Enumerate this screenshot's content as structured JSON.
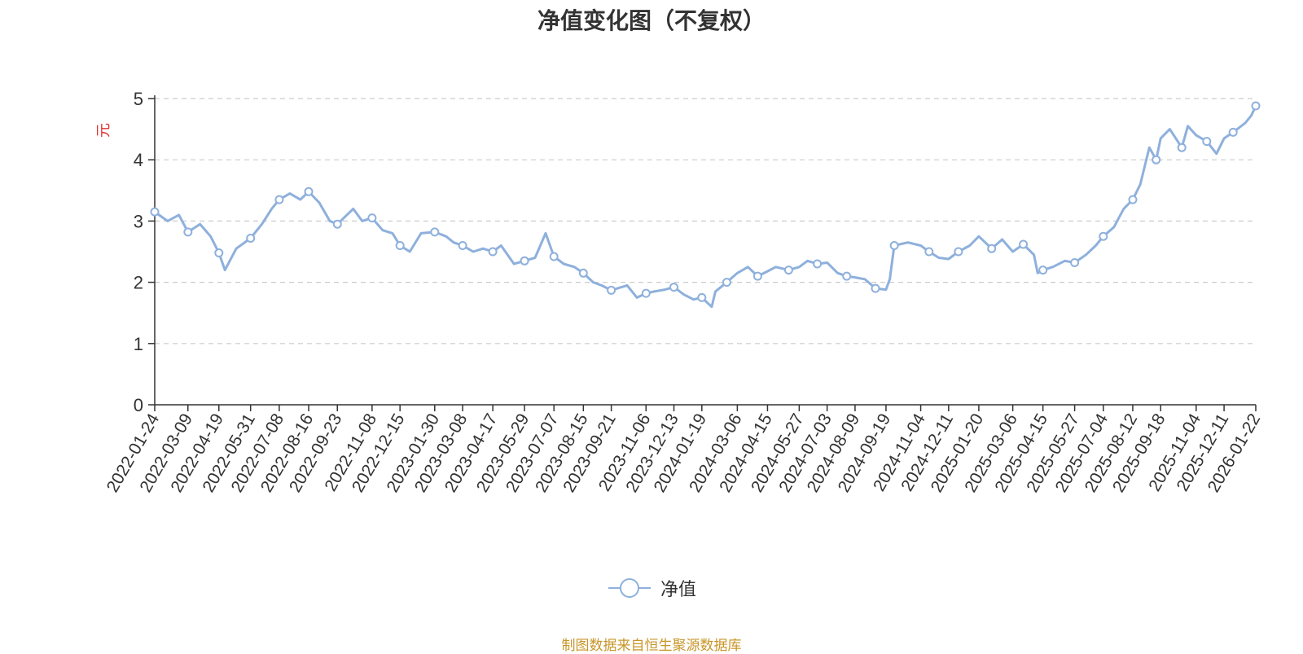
{
  "chart_data": {
    "type": "line",
    "title": "净值变化图（不复权）",
    "ylabel": "元",
    "ylim": [
      0,
      5
    ],
    "yticks": [
      0,
      1,
      2,
      3,
      4,
      5
    ],
    "grid": true,
    "legend_position": "bottom",
    "x_tick_labels": [
      "2022-01-24",
      "2022-03-09",
      "2022-04-19",
      "2022-05-31",
      "2022-07-08",
      "2022-08-16",
      "2022-09-23",
      "2022-11-08",
      "2022-12-15",
      "2023-01-30",
      "2023-03-08",
      "2023-04-17",
      "2023-05-29",
      "2023-07-07",
      "2023-08-15",
      "2023-09-21",
      "2023-11-06",
      "2023-12-13",
      "2024-01-19",
      "2024-03-06",
      "2024-04-15",
      "2024-05-27",
      "2024-07-03",
      "2024-08-09",
      "2024-09-19",
      "2024-11-04",
      "2024-12-11",
      "2025-01-20",
      "2025-03-06",
      "2025-04-15",
      "2025-05-27",
      "2025-07-04",
      "2025-08-12",
      "2025-09-18",
      "2025-11-04",
      "2025-12-11",
      "2026-01-22"
    ],
    "series": [
      {
        "name": "净值",
        "color": "#8eb0dc",
        "x": [
          "2022-01-24",
          "2022-02-10",
          "2022-02-25",
          "2022-03-09",
          "2022-03-25",
          "2022-04-08",
          "2022-04-19",
          "2022-04-27",
          "2022-05-12",
          "2022-05-31",
          "2022-06-15",
          "2022-06-28",
          "2022-07-08",
          "2022-07-22",
          "2022-08-05",
          "2022-08-16",
          "2022-08-30",
          "2022-09-13",
          "2022-09-23",
          "2022-10-14",
          "2022-10-26",
          "2022-11-08",
          "2022-11-22",
          "2022-12-05",
          "2022-12-15",
          "2022-12-28",
          "2023-01-12",
          "2023-01-30",
          "2023-02-14",
          "2023-02-24",
          "2023-03-08",
          "2023-03-22",
          "2023-04-04",
          "2023-04-17",
          "2023-04-28",
          "2023-05-15",
          "2023-05-29",
          "2023-06-12",
          "2023-06-26",
          "2023-07-07",
          "2023-07-20",
          "2023-08-03",
          "2023-08-15",
          "2023-08-28",
          "2023-09-08",
          "2023-09-21",
          "2023-10-12",
          "2023-10-25",
          "2023-11-06",
          "2023-11-17",
          "2023-12-01",
          "2023-12-13",
          "2023-12-26",
          "2024-01-08",
          "2024-01-19",
          "2024-02-01",
          "2024-02-06",
          "2024-02-21",
          "2024-03-06",
          "2024-03-20",
          "2024-04-02",
          "2024-04-15",
          "2024-04-26",
          "2024-05-13",
          "2024-05-27",
          "2024-06-07",
          "2024-06-20",
          "2024-07-03",
          "2024-07-17",
          "2024-07-29",
          "2024-08-09",
          "2024-08-22",
          "2024-09-05",
          "2024-09-19",
          "2024-09-24",
          "2024-09-30",
          "2024-10-18",
          "2024-11-04",
          "2024-11-15",
          "2024-11-28",
          "2024-12-11",
          "2024-12-24",
          "2025-01-08",
          "2025-01-20",
          "2025-02-06",
          "2025-02-20",
          "2025-03-06",
          "2025-03-20",
          "2025-04-03",
          "2025-04-08",
          "2025-04-15",
          "2025-04-28",
          "2025-05-14",
          "2025-05-27",
          "2025-06-11",
          "2025-06-24",
          "2025-07-04",
          "2025-07-18",
          "2025-07-31",
          "2025-08-12",
          "2025-08-22",
          "2025-09-03",
          "2025-09-12",
          "2025-09-18",
          "2025-09-30",
          "2025-10-16",
          "2025-10-24",
          "2025-11-04",
          "2025-11-18",
          "2025-12-01",
          "2025-12-11",
          "2025-12-23",
          "2026-01-08",
          "2026-01-16",
          "2026-01-22"
        ],
        "values": [
          3.15,
          3.0,
          3.1,
          2.82,
          2.95,
          2.75,
          2.48,
          2.2,
          2.55,
          2.72,
          2.95,
          3.2,
          3.35,
          3.45,
          3.35,
          3.48,
          3.3,
          3.0,
          2.95,
          3.2,
          3.0,
          3.05,
          2.85,
          2.8,
          2.6,
          2.5,
          2.8,
          2.82,
          2.75,
          2.65,
          2.6,
          2.5,
          2.55,
          2.5,
          2.6,
          2.3,
          2.35,
          2.4,
          2.8,
          2.42,
          2.3,
          2.25,
          2.15,
          2.0,
          1.95,
          1.87,
          1.95,
          1.75,
          1.82,
          1.85,
          1.88,
          1.92,
          1.8,
          1.72,
          1.75,
          1.6,
          1.85,
          2.0,
          2.15,
          2.25,
          2.1,
          2.18,
          2.25,
          2.2,
          2.25,
          2.35,
          2.3,
          2.32,
          2.15,
          2.1,
          2.08,
          2.05,
          1.9,
          1.88,
          2.05,
          2.6,
          2.65,
          2.6,
          2.5,
          2.4,
          2.38,
          2.5,
          2.6,
          2.75,
          2.55,
          2.7,
          2.5,
          2.62,
          2.45,
          2.15,
          2.2,
          2.25,
          2.35,
          2.32,
          2.45,
          2.6,
          2.75,
          2.9,
          3.2,
          3.35,
          3.6,
          4.2,
          4.0,
          4.35,
          4.5,
          4.2,
          4.55,
          4.4,
          4.3,
          4.1,
          4.35,
          4.45,
          4.6,
          4.72,
          4.88
        ]
      }
    ]
  },
  "footer": {
    "source": "制图数据来自恒生聚源数据库"
  }
}
